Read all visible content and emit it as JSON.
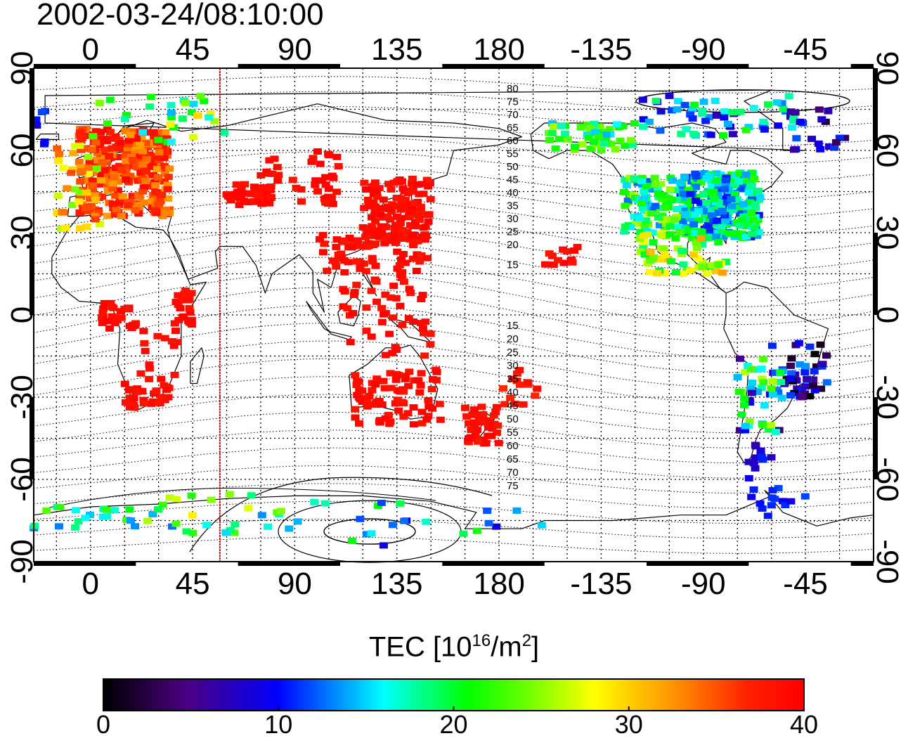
{
  "title": "2002-03-24/08:10:00",
  "map": {
    "top_lon_labels": [
      "0",
      "45",
      "90",
      "135",
      "180",
      "-135",
      "-90",
      "-45"
    ],
    "bottom_lon_labels": [
      "0",
      "45",
      "90",
      "135",
      "180",
      "-135",
      "-90",
      "-45"
    ],
    "left_lat_labels": [
      "90",
      "60",
      "30",
      "0",
      "-30",
      "-60",
      "-90"
    ],
    "right_lat_labels": [
      "90",
      "60",
      "30",
      "0",
      "-30",
      "-60",
      "-90"
    ],
    "lon_range": [
      -25,
      345
    ],
    "lat_range": [
      -90,
      90
    ],
    "grid": true,
    "terminator_lon": 57,
    "contour_labels_north": [
      "80",
      "75",
      "70",
      "65",
      "60",
      "55",
      "50",
      "45",
      "40",
      "35",
      "30",
      "25",
      "20",
      "15"
    ],
    "contour_labels_south": [
      "15",
      "20",
      "25",
      "30",
      "35",
      "40",
      "45",
      "50",
      "55",
      "60",
      "65",
      "70",
      "75"
    ]
  },
  "colorbar": {
    "title_prefix": "TEC  [10",
    "title_exp": "16",
    "title_unit": "/m",
    "title_unit_exp": "2",
    "title_suffix": "]",
    "ticks": [
      "0",
      "10",
      "20",
      "30",
      "40"
    ],
    "range": [
      0,
      40
    ]
  },
  "colors": {
    "high_tec": "#ee1100",
    "terminator": "#e00000"
  }
}
